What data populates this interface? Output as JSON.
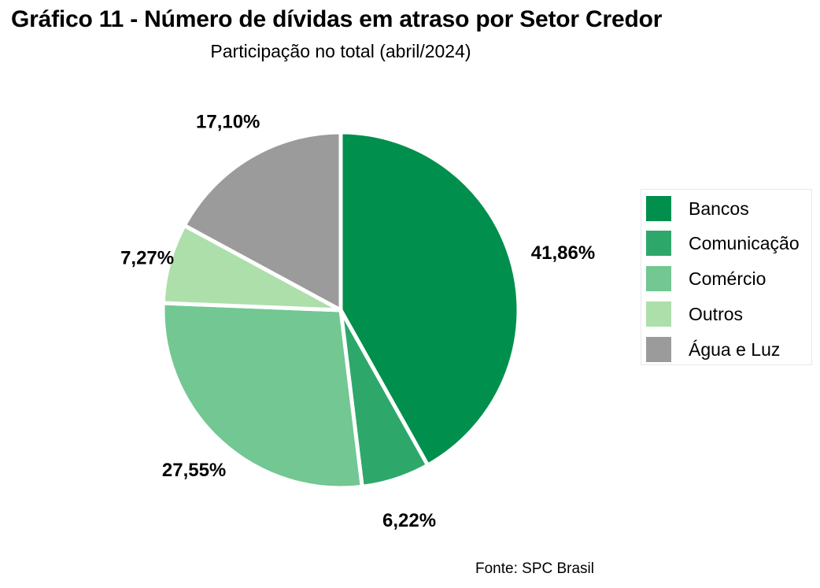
{
  "chart_data": {
    "type": "pie",
    "title": "Gráfico 11 - Número de dívidas em atraso por Setor Credor",
    "subtitle": "Participação no total (abril/2024)",
    "categories": [
      "Bancos",
      "Comunicação",
      "Comércio",
      "Outros",
      "Água e Luz"
    ],
    "values": [
      41.86,
      6.22,
      27.55,
      7.27,
      17.1
    ],
    "value_labels": [
      "41,86%",
      "6,22%",
      "27,55%",
      "7,27%",
      "17,10%"
    ],
    "colors": [
      "#008f4c",
      "#2ea86a",
      "#72c792",
      "#addfab",
      "#9b9b9b"
    ],
    "legend_position": "right",
    "source": "Fonte: SPC Brasil"
  }
}
